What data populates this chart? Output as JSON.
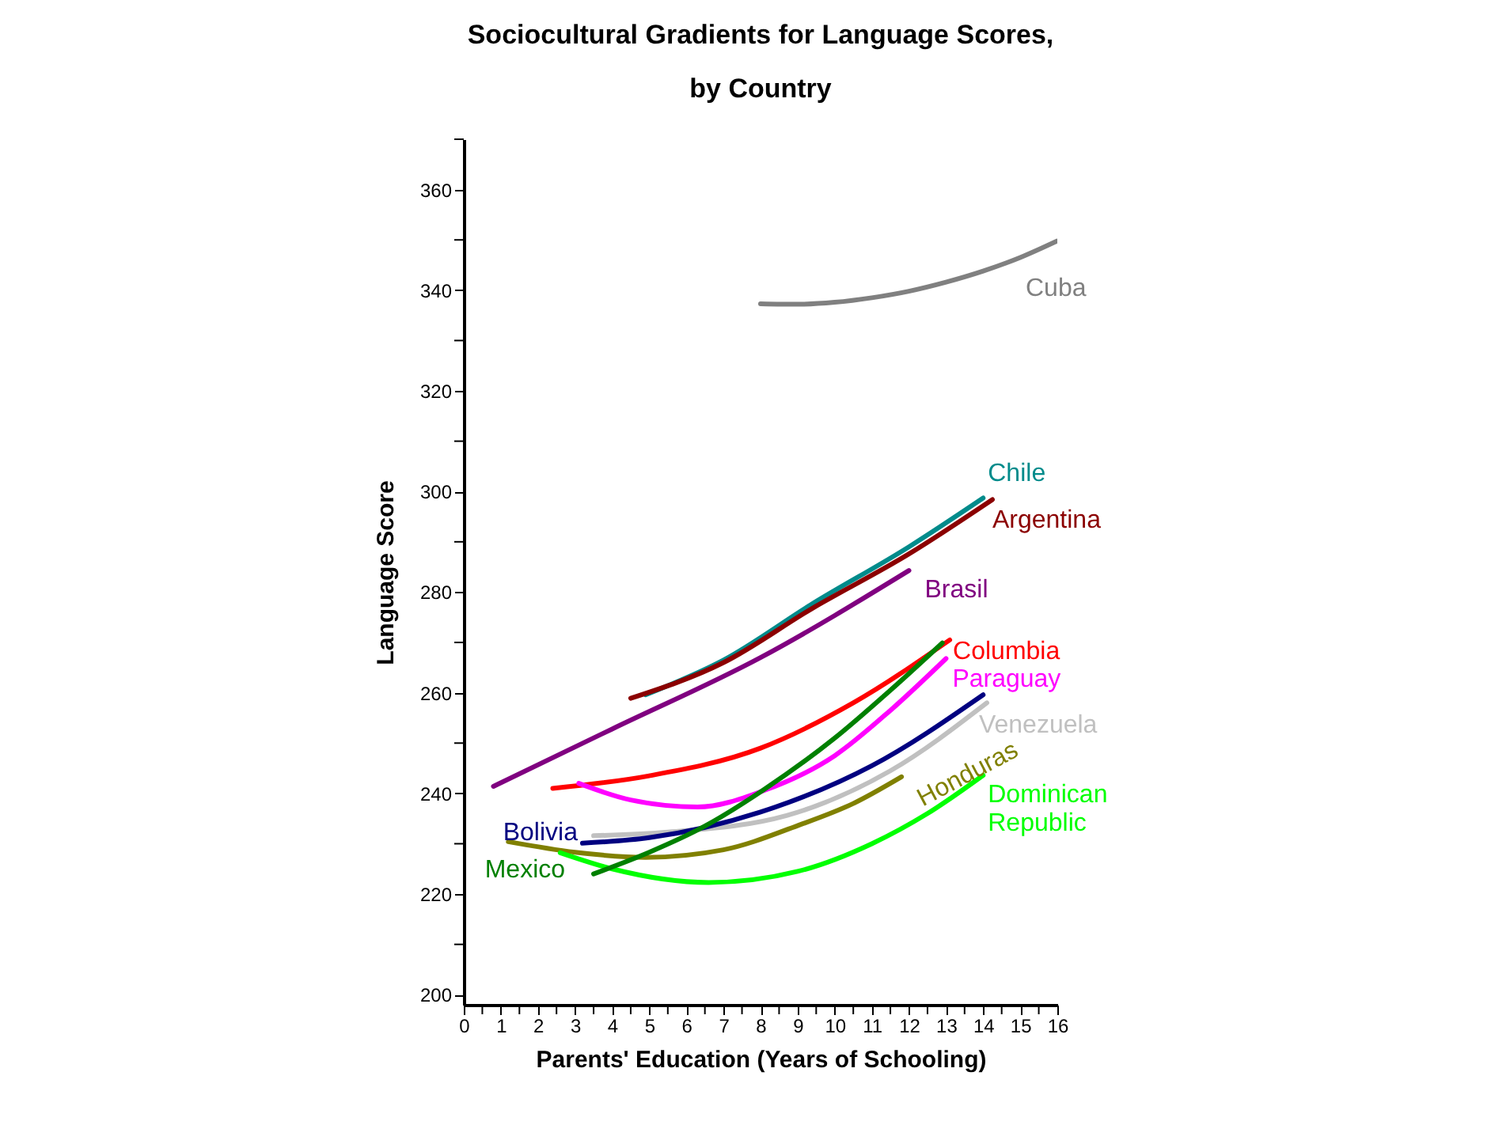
{
  "chart_data": {
    "type": "line",
    "title": "Sociocultural Gradients for Language Scores, by Country",
    "xlabel": "Parents' Education (Years of Schooling)",
    "ylabel": "Language Score",
    "xlim": [
      0,
      16
    ],
    "ylim": [
      198,
      370
    ],
    "xticks": [
      0,
      {
        "value": 0.5,
        "label": null
      },
      1,
      {
        "value": 1.5,
        "label": null
      },
      2,
      {
        "value": 2.5,
        "label": null
      },
      3,
      {
        "value": 3.5,
        "label": null
      },
      4,
      {
        "value": 4.5,
        "label": null
      },
      5,
      {
        "value": 5.5,
        "label": null
      },
      6,
      {
        "value": 6.5,
        "label": null
      },
      7,
      {
        "value": 7.5,
        "label": null
      },
      8,
      {
        "value": 8.5,
        "label": null
      },
      9,
      {
        "value": 9.5,
        "label": null
      },
      10,
      {
        "value": 10.5,
        "label": null
      },
      11,
      {
        "value": 11.5,
        "label": null
      },
      12,
      {
        "value": 12.5,
        "label": null
      },
      13,
      {
        "value": 13.5,
        "label": null
      },
      14,
      {
        "value": 14.5,
        "label": null
      },
      15,
      {
        "value": 15.5,
        "label": null
      },
      16
    ],
    "yticks": [
      200,
      {
        "value": 210,
        "label": null
      },
      220,
      {
        "value": 230,
        "label": null
      },
      240,
      {
        "value": 250,
        "label": null
      },
      260,
      {
        "value": 270,
        "label": null
      },
      280,
      {
        "value": 290,
        "label": null
      },
      300,
      {
        "value": 310,
        "label": null
      },
      320,
      {
        "value": 330,
        "label": null
      },
      340,
      {
        "value": 350,
        "label": null
      },
      360,
      {
        "value": 370,
        "label": null
      }
    ],
    "grid": false,
    "marker": "none",
    "line_style": "solid",
    "series": [
      {
        "name": "Cuba",
        "color": "#808080",
        "x": [
          8,
          9,
          10,
          11,
          12,
          13,
          14,
          15,
          16
        ],
        "values": [
          337.3,
          337.2,
          337.6,
          338.5,
          339.8,
          341.6,
          343.8,
          346.5,
          349.8
        ]
      },
      {
        "name": "Chile",
        "color": "#008b8b",
        "x": [
          4.9,
          7,
          9.4,
          12,
          14
        ],
        "values": [
          259.6,
          266.5,
          277.7,
          289,
          298.7
        ]
      },
      {
        "name": "Argentina",
        "color": "#8b0000",
        "x": [
          4.5,
          7,
          9.4,
          12,
          14.25
        ],
        "values": [
          258.9,
          266,
          276.8,
          287.6,
          298.4
        ]
      },
      {
        "name": "Brasil",
        "color": "#800080",
        "x": [
          0.8,
          4,
          8,
          12
        ],
        "values": [
          241.4,
          252.8,
          267,
          284.3
        ]
      },
      {
        "name": "Columbia",
        "color": "#ff0000",
        "x": [
          2.4,
          5,
          8,
          10.5,
          13.1
        ],
        "values": [
          241,
          243.5,
          249,
          258,
          270.5
        ]
      },
      {
        "name": "Paraguay",
        "color": "#ff00ff",
        "x": [
          3.1,
          4.5,
          6.3,
          8.1,
          10,
          11.5,
          13
        ],
        "values": [
          242,
          238.7,
          237.3,
          240.6,
          247.5,
          256.5,
          266.8
        ]
      },
      {
        "name": "Venezuela",
        "color": "#c0c0c0",
        "x": [
          3.5,
          5.5,
          8.7,
          11.5,
          14.1
        ],
        "values": [
          231.6,
          232.3,
          235.6,
          244.5,
          258
        ]
      },
      {
        "name": "Honduras",
        "color": "#808000",
        "x": [
          1.2,
          3,
          4.9,
          7,
          9,
          10.5,
          11.8
        ],
        "values": [
          230.4,
          228.3,
          227.3,
          228.8,
          233.6,
          238,
          243.3
        ]
      },
      {
        "name": "Dominican Republic",
        "color": "#00ff00",
        "x": [
          2.6,
          4,
          6.6,
          9,
          11,
          12.5,
          14
        ],
        "values": [
          228.2,
          225,
          222.3,
          224.5,
          230,
          236,
          243.6
        ]
      },
      {
        "name": "Bolivia",
        "color": "#000080",
        "x": [
          3.2,
          5,
          8,
          11,
          14
        ],
        "values": [
          230.1,
          231.2,
          236.3,
          245.5,
          259.6
        ]
      },
      {
        "name": "Mexico",
        "color": "#008000",
        "x": [
          3.5,
          5,
          6.5,
          8.1,
          10,
          11.5,
          12.9
        ],
        "values": [
          224,
          228.3,
          233.5,
          240.8,
          251,
          260.5,
          269.9
        ]
      }
    ]
  }
}
